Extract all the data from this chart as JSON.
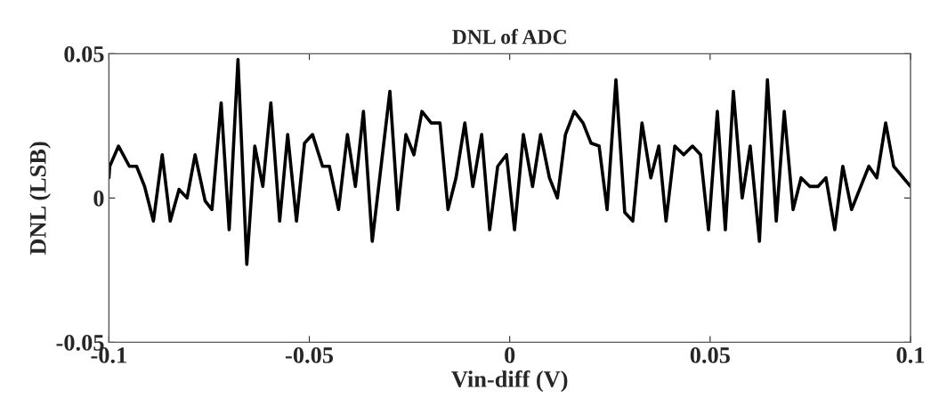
{
  "chart_data": {
    "type": "line",
    "title": "DNL of ADC",
    "xlabel": "Vin-diff (V)",
    "ylabel": "DNL (LSB)",
    "xlim": [
      -0.1,
      0.1
    ],
    "ylim": [
      -0.05,
      0.05
    ],
    "xticks": [
      -0.1,
      -0.05,
      0,
      0.05,
      0.1
    ],
    "yticks": [
      -0.05,
      0,
      0.05
    ],
    "grid": false,
    "marker": "none",
    "line_style": "solid",
    "series": [
      {
        "color": "#000000",
        "x": [
          -0.1,
          -0.0998,
          -0.0976,
          -0.0949,
          -0.0931,
          -0.0911,
          -0.0889,
          -0.0867,
          -0.0847,
          -0.0825,
          -0.0805,
          -0.0785,
          -0.076,
          -0.0743,
          -0.072,
          -0.07,
          -0.0678,
          -0.0656,
          -0.0636,
          -0.0616,
          -0.0596,
          -0.0574,
          -0.0554,
          -0.0532,
          -0.0512,
          -0.0492,
          -0.0467,
          -0.045,
          -0.0427,
          -0.0405,
          -0.0385,
          -0.0365,
          -0.0343,
          -0.0299,
          -0.0279,
          -0.0259,
          -0.0239,
          -0.0219,
          -0.0196,
          -0.0174,
          -0.0154,
          -0.0134,
          -0.0112,
          -0.0092,
          -0.007,
          -0.005,
          -0.003,
          -0.0008,
          0.0012,
          0.0034,
          0.0057,
          0.0077,
          0.0099,
          0.0119,
          0.0139,
          0.0161,
          0.0183,
          0.0203,
          0.0223,
          0.0243,
          0.0265,
          0.0287,
          0.0307,
          0.033,
          0.0352,
          0.0372,
          0.039,
          0.0412,
          0.0434,
          0.0456,
          0.0476,
          0.0496,
          0.0518,
          0.0538,
          0.0558,
          0.058,
          0.06,
          0.0623,
          0.0643,
          0.0665,
          0.0685,
          0.0707,
          0.0727,
          0.0749,
          0.0769,
          0.0789,
          0.0811,
          0.0831,
          0.0853,
          0.0873,
          0.0896,
          0.0916,
          0.0938,
          0.0958,
          0.1
        ],
        "values": [
          0.007,
          0.011,
          0.018,
          0.011,
          0.011,
          0.004,
          -0.008,
          0.015,
          -0.008,
          0.003,
          0,
          0.015,
          -0.001,
          -0.004,
          0.033,
          -0.011,
          0.048,
          -0.023,
          0.018,
          0.004,
          0.033,
          -0.008,
          0.022,
          -0.008,
          0.019,
          0.022,
          0.011,
          0.011,
          -0.004,
          0.022,
          0.004,
          0.03,
          -0.015,
          0.037,
          -0.004,
          0.022,
          0.015,
          0.03,
          0.026,
          0.026,
          -0.004,
          0.007,
          0.026,
          0.004,
          0.022,
          -0.011,
          0.011,
          0.015,
          -0.011,
          0.022,
          0.004,
          0.022,
          0.007,
          0,
          0.022,
          0.03,
          0.026,
          0.019,
          0.018,
          -0.004,
          0.041,
          -0.005,
          -0.008,
          0.026,
          0.007,
          0.018,
          -0.008,
          0.018,
          0.015,
          0.018,
          0.015,
          -0.011,
          0.03,
          -0.011,
          0.037,
          0,
          0.018,
          -0.015,
          0.041,
          -0.008,
          0.03,
          -0.004,
          0.007,
          0.004,
          0.004,
          0.007,
          -0.011,
          0.011,
          -0.004,
          0.003,
          0.011,
          0.007,
          0.026,
          0.011,
          0.004
        ]
      }
    ]
  }
}
